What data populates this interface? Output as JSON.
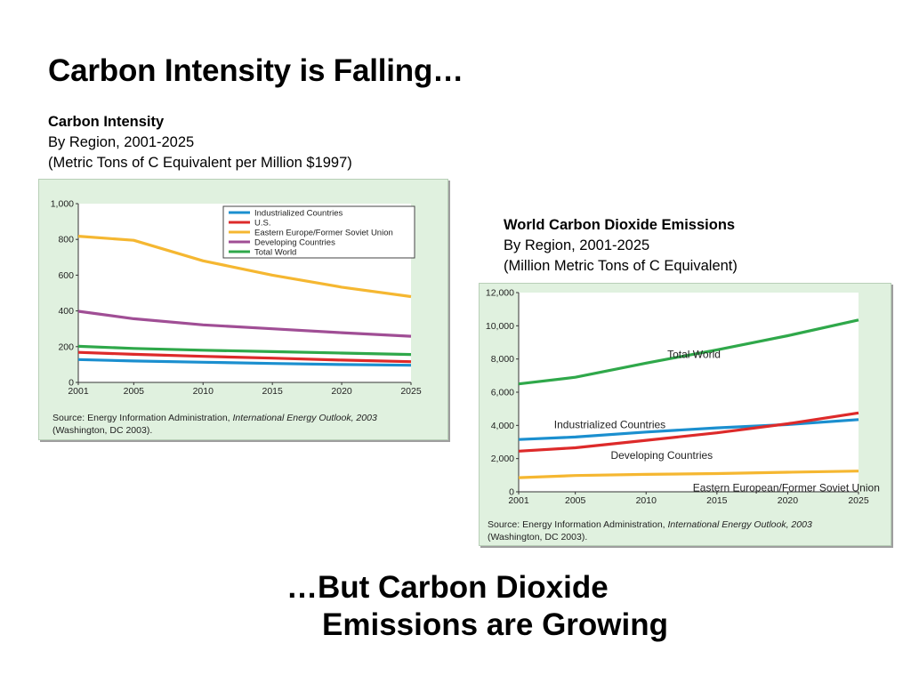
{
  "slide": {
    "title": "Carbon Intensity is Falling…",
    "bottom_title_line1": "…But Carbon Dioxide",
    "bottom_title_line2": "Emissions are Growing"
  },
  "captions": [
    {
      "title": "Carbon Intensity",
      "subtitle": "By Region, 2001-2025",
      "units": "(Metric Tons of C Equivalent per Million $1997)"
    },
    {
      "title": "World Carbon Dioxide Emissions",
      "subtitle": "By Region, 2001-2025",
      "units": "(Million Metric Tons of C Equivalent)"
    }
  ],
  "sources": [
    {
      "prefix": "Source: Energy Information Administration, ",
      "italic": "International Energy Outlook, 2003",
      "line2": "(Washington, DC 2003)."
    },
    {
      "prefix": "Source: Energy Information Administration, ",
      "italic": "International Energy Outlook, 2003",
      "line2": "(Washington, DC 2003)."
    }
  ],
  "colors": {
    "panel_bg": "#e0f1df",
    "blue": "#1b8fcf",
    "red": "#dd2a2a",
    "yellow": "#f5b731",
    "purple": "#a04e95",
    "green": "#2fa84a"
  },
  "chart_data": [
    {
      "type": "line",
      "title": "Carbon Intensity",
      "x": [
        2001,
        2005,
        2010,
        2015,
        2020,
        2025
      ],
      "xticks": [
        "2001",
        "2005",
        "2010",
        "2015",
        "2020",
        "2025"
      ],
      "ylim": [
        0,
        1000
      ],
      "yticks": [
        0,
        200,
        400,
        600,
        800,
        1000
      ],
      "ytick_labels": [
        "0",
        "200",
        "400",
        "600",
        "800",
        "1,000"
      ],
      "legend_position": "top-right",
      "series": [
        {
          "name": "Industrialized Countries",
          "color": "#1b8fcf",
          "values": [
            128,
            120,
            113,
            106,
            100,
            96
          ]
        },
        {
          "name": "U.S.",
          "color": "#dd2a2a",
          "values": [
            168,
            157,
            146,
            136,
            125,
            116
          ]
        },
        {
          "name": "Eastern Europe/Former Soviet Union",
          "color": "#f5b731",
          "values": [
            818,
            795,
            680,
            600,
            533,
            480
          ]
        },
        {
          "name": "Developing Countries",
          "color": "#a04e95",
          "values": [
            398,
            356,
            322,
            300,
            278,
            258
          ]
        },
        {
          "name": "Total World",
          "color": "#2fa84a",
          "values": [
            202,
            190,
            180,
            172,
            164,
            156
          ]
        }
      ]
    },
    {
      "type": "line",
      "title": "World Carbon Dioxide Emissions",
      "x": [
        2001,
        2005,
        2010,
        2015,
        2020,
        2025
      ],
      "xticks": [
        "2001",
        "2005",
        "2010",
        "2015",
        "2020",
        "2025"
      ],
      "ylim": [
        0,
        12000
      ],
      "yticks": [
        0,
        2000,
        4000,
        6000,
        8000,
        10000,
        12000
      ],
      "ytick_labels": [
        "0",
        "2,000",
        "4,000",
        "6,000",
        "8,000",
        "10,000",
        "12,000"
      ],
      "legend_position": "none",
      "series": [
        {
          "name": "Total World",
          "color": "#2fa84a",
          "values": [
            6500,
            6900,
            7750,
            8550,
            9400,
            10350
          ]
        },
        {
          "name": "Industrialized Countries",
          "color": "#1b8fcf",
          "values": [
            3150,
            3300,
            3600,
            3850,
            4050,
            4350
          ]
        },
        {
          "name": "Developing Countries",
          "color": "#dd2a2a",
          "values": [
            2450,
            2650,
            3100,
            3550,
            4100,
            4750
          ]
        },
        {
          "name": "Eastern European/Former Soviet Union",
          "color": "#f5b731",
          "values": [
            850,
            980,
            1050,
            1100,
            1180,
            1250
          ]
        }
      ]
    }
  ]
}
